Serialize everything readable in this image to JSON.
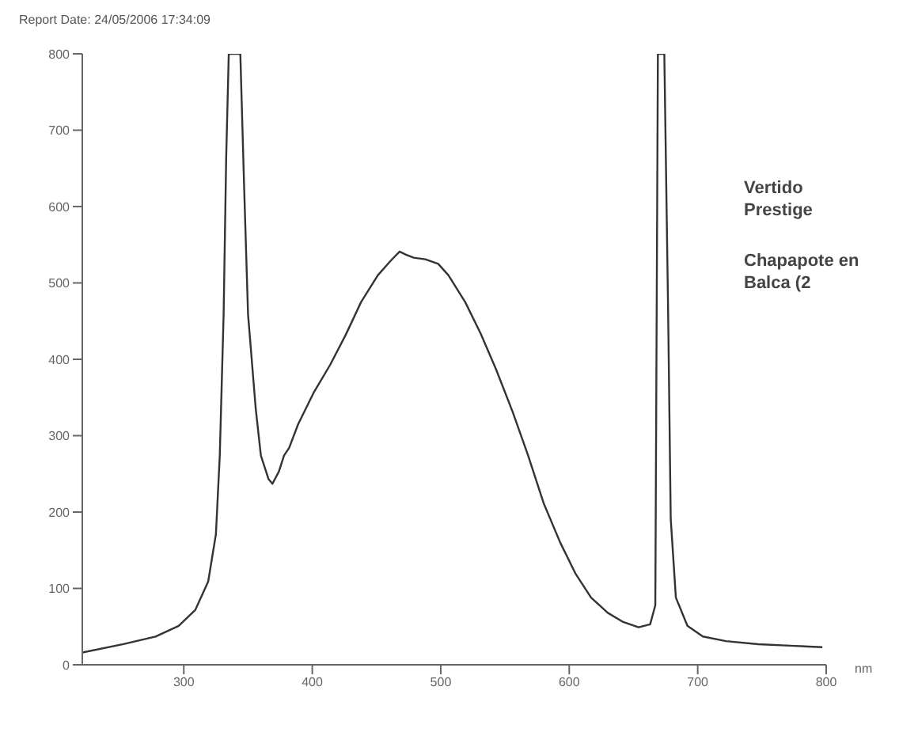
{
  "chart_data": {
    "type": "line",
    "title": "Report Date: 24/05/2006 17:34:09",
    "xlabel": "nm",
    "annotations": [
      "Vertido Prestige",
      "Chapapote en Balca (2"
    ],
    "x": [
      221,
      253,
      278,
      296,
      309,
      319,
      325,
      328,
      331,
      333,
      335,
      344,
      347,
      350,
      356,
      360,
      366,
      369,
      374,
      378,
      382,
      389,
      401,
      414,
      426,
      438,
      451,
      461,
      468,
      473,
      479,
      488,
      498,
      506,
      519,
      531,
      543,
      556,
      568,
      580,
      593,
      605,
      617,
      630,
      642,
      654,
      663,
      667,
      669,
      674,
      677,
      679,
      683,
      692,
      704,
      722,
      747,
      772,
      797
    ],
    "series": [
      {
        "color": "#333333",
        "values": [
          16,
          27,
          37,
          51,
          72,
          109,
          171,
          274,
          459,
          665,
          800,
          800,
          623,
          459,
          335,
          274,
          243,
          237,
          253,
          274,
          284,
          315,
          356,
          393,
          432,
          475,
          510,
          529,
          541,
          537,
          533,
          531,
          525,
          510,
          475,
          434,
          387,
          331,
          274,
          212,
          160,
          119,
          88,
          68,
          56,
          49,
          53,
          78,
          800,
          800,
          459,
          191,
          88,
          51,
          37,
          31,
          27,
          25,
          23
        ]
      }
    ],
    "xlim": [
      221,
      800
    ],
    "xticks": [
      300,
      400,
      500,
      600,
      700,
      800
    ],
    "ylim": [
      0,
      800
    ],
    "yticks": [
      0,
      100,
      200,
      300,
      400,
      500,
      600,
      700,
      800
    ],
    "grid": false,
    "legend": false,
    "marker": "none",
    "line_style": "solid"
  }
}
